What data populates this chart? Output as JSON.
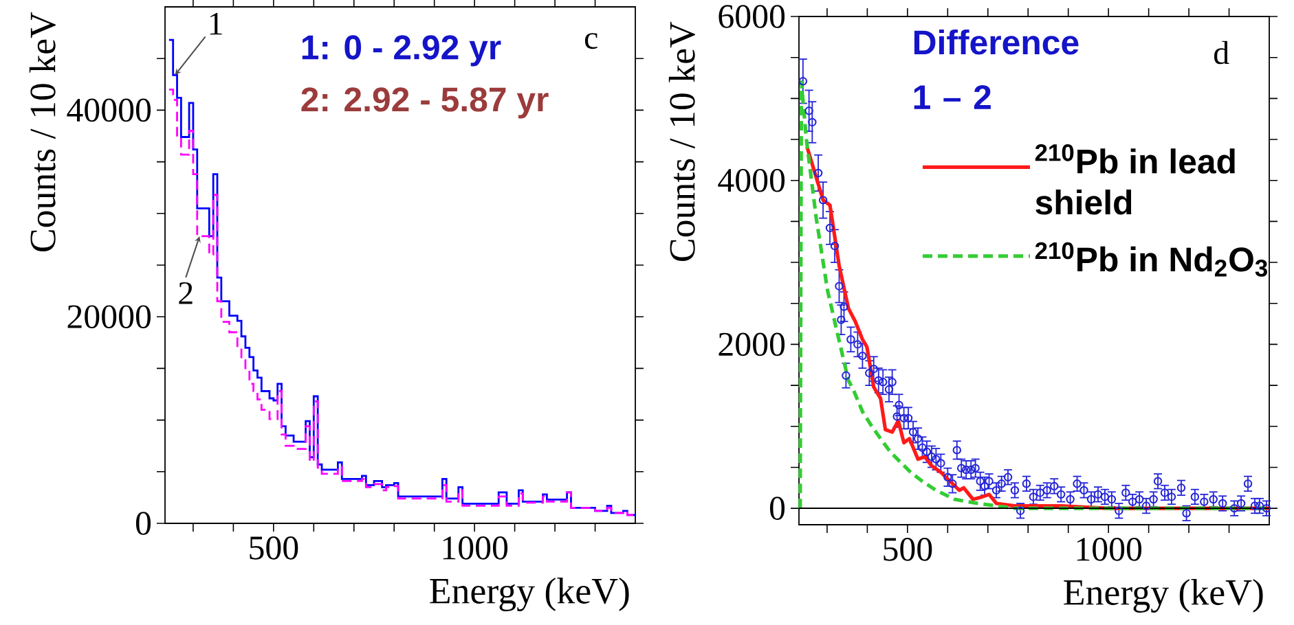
{
  "chart_data": [
    {
      "type": "histogram",
      "xlabel": "Energy (keV)",
      "ylabel": "Counts / 10 keV",
      "legend": false,
      "bins": [
        240,
        250,
        260,
        270,
        290,
        300,
        310,
        340,
        350,
        360,
        370,
        390,
        410,
        420,
        430,
        440,
        450,
        460,
        470,
        490,
        500,
        510,
        520,
        530,
        550,
        580,
        590,
        600,
        610,
        620,
        660,
        670,
        720,
        730,
        750,
        770,
        780,
        800,
        810,
        920,
        930,
        960,
        970,
        1060,
        1080,
        1110,
        1120,
        1170,
        1180,
        1230,
        1240,
        1300,
        1330,
        1340,
        1370,
        1380,
        1400
      ],
      "series": [
        {
          "color": "#0000ff",
          "line_style": "solid",
          "values": [
            46800,
            43400,
            41200,
            37400,
            40700,
            36200,
            30500,
            27800,
            33800,
            23800,
            21500,
            20100,
            19600,
            18100,
            17000,
            16100,
            14800,
            14100,
            12800,
            12100,
            11900,
            13500,
            9400,
            8500,
            7900,
            9900,
            6400,
            12300,
            5700,
            5200,
            5900,
            4300,
            4600,
            3700,
            4100,
            3500,
            3700,
            3900,
            2600,
            4300,
            2400,
            3500,
            1900,
            3000,
            1900,
            3200,
            2100,
            2800,
            2300,
            3000,
            1500,
            1200,
            1700,
            1000,
            1200,
            800
          ]
        },
        {
          "color": "#ff00ff",
          "line_style": "dashed",
          "values": [
            42000,
            41000,
            37400,
            35700,
            38000,
            33800,
            27800,
            26000,
            31800,
            21500,
            19500,
            18500,
            17000,
            15800,
            14800,
            13500,
            12800,
            12000,
            11000,
            10100,
            10100,
            12800,
            8600,
            7500,
            7200,
            9400,
            6000,
            11800,
            5400,
            4800,
            5500,
            4100,
            4300,
            3500,
            3800,
            3200,
            3500,
            3600,
            2400,
            3700,
            2100,
            3200,
            1700,
            2600,
            1700,
            2900,
            2000,
            2600,
            2100,
            3000,
            1500,
            1200,
            1500,
            1000,
            1200,
            800
          ]
        }
      ],
      "xlim": [
        230,
        1400
      ],
      "ylim": [
        0,
        50000
      ],
      "xticks": [
        {
          "value": 300,
          "label": null
        },
        {
          "value": 400,
          "label": null
        },
        500,
        {
          "value": 600,
          "label": null
        },
        {
          "value": 700,
          "label": null
        },
        {
          "value": 800,
          "label": null
        },
        {
          "value": 900,
          "label": null
        },
        1000,
        {
          "value": 1100,
          "label": null
        },
        {
          "value": 1200,
          "label": null
        },
        {
          "value": 1300,
          "label": null
        }
      ],
      "yticks": [
        0,
        {
          "value": 5000,
          "label": null
        },
        {
          "value": 10000,
          "label": null
        },
        {
          "value": 15000,
          "label": null
        },
        20000,
        {
          "value": 25000,
          "label": null
        },
        {
          "value": 30000,
          "label": null
        },
        {
          "value": 35000,
          "label": null
        },
        40000,
        {
          "value": 45000,
          "label": null
        }
      ],
      "annotations": [
        {
          "text": "1",
          "x": 255,
          "y": 43400
        },
        {
          "text": "2",
          "x": 316,
          "y": 27800
        },
        "1: 0 - 2.92 yr",
        "2: 2.92 - 5.87 yr",
        "c"
      ]
    },
    {
      "type": "scatter",
      "xlabel": "Energy (keV)",
      "ylabel": "Counts / 10 keV",
      "legend": "right",
      "series": [
        {
          "type": "scatter",
          "color": "#2424d8",
          "marker": "circle",
          "x": [
            240,
            255,
            263,
            278,
            290,
            307,
            319,
            330,
            335,
            342,
            347,
            359,
            376,
            388,
            405,
            416,
            428,
            439,
            454,
            462,
            474,
            479,
            491,
            502,
            514,
            526,
            537,
            548,
            560,
            571,
            583,
            600,
            612,
            623,
            634,
            646,
            658,
            669,
            681,
            692,
            703,
            721,
            734,
            750,
            767,
            781,
            796,
            813,
            830,
            847,
            865,
            882,
            905,
            922,
            939,
            957,
            974,
            991,
            1008,
            1026,
            1043,
            1060,
            1077,
            1094,
            1112,
            1123,
            1140,
            1157,
            1181,
            1194,
            1215,
            1238,
            1261,
            1284,
            1313,
            1330,
            1347,
            1364,
            1376,
            1393
          ],
          "values": [
            5210,
            4850,
            4710,
            4090,
            3760,
            3420,
            3200,
            2710,
            2300,
            2460,
            1620,
            2060,
            2000,
            1860,
            1650,
            1700,
            1560,
            1540,
            1450,
            1540,
            1120,
            1260,
            1100,
            1100,
            930,
            850,
            740,
            690,
            630,
            600,
            550,
            380,
            300,
            710,
            490,
            470,
            470,
            490,
            330,
            270,
            330,
            220,
            300,
            380,
            220,
            -30,
            300,
            140,
            190,
            220,
            270,
            170,
            110,
            300,
            220,
            110,
            170,
            140,
            110,
            -30,
            190,
            80,
            110,
            30,
            110,
            330,
            190,
            140,
            250,
            -60,
            140,
            80,
            110,
            60,
            0,
            60,
            300,
            30,
            30,
            0
          ],
          "errors": [
            270,
            250,
            250,
            220,
            220,
            200,
            200,
            200,
            180,
            180,
            150,
            150,
            150,
            150,
            150,
            150,
            150,
            150,
            150,
            150,
            130,
            130,
            130,
            130,
            130,
            130,
            130,
            130,
            130,
            130,
            110,
            110,
            110,
            110,
            110,
            110,
            110,
            110,
            110,
            110,
            90,
            90,
            90,
            90,
            90,
            90,
            90,
            90,
            90,
            90,
            90,
            90,
            90,
            90,
            90,
            90,
            90,
            90,
            90,
            90,
            90,
            90,
            90,
            90,
            90,
            90,
            90,
            90,
            90,
            90,
            90,
            90,
            90,
            90,
            90,
            90,
            90,
            90,
            90,
            90
          ]
        },
        {
          "type": "line",
          "name": "$^{210}$Pb in lead shield",
          "color": "#ff1a1a",
          "line_style": "solid",
          "x": [
            250,
            290,
            307,
            330,
            353,
            370,
            388,
            399,
            416,
            433,
            445,
            462,
            477,
            491,
            505,
            526,
            543,
            560,
            583,
            606,
            629,
            640,
            663,
            686,
            703,
            721,
            767,
            882,
            997,
            1400
          ],
          "values": [
            4410,
            3760,
            3700,
            2960,
            2440,
            2280,
            2060,
            1970,
            1480,
            1340,
            960,
            930,
            1070,
            800,
            850,
            600,
            630,
            520,
            440,
            330,
            220,
            250,
            110,
            140,
            170,
            60,
            30,
            30,
            0,
            0
          ]
        },
        {
          "type": "line",
          "name": "$^{210}$Pb in Nd$_{2}$O$_{3}$",
          "color": "#33cc33",
          "line_style": "dashed",
          "x": [
            233,
            236,
            248,
            273,
            301,
            324,
            353,
            365,
            388,
            410,
            433,
            457,
            479,
            508,
            537,
            571,
            617,
            675,
            767,
            1400
          ],
          "values": [
            0,
            5200,
            4520,
            3540,
            2660,
            2170,
            1560,
            1450,
            1180,
            1010,
            850,
            690,
            580,
            440,
            330,
            220,
            110,
            60,
            0,
            0
          ]
        }
      ],
      "ref_lines": [
        {
          "axis": "y",
          "value": 0,
          "color": "#000000"
        }
      ],
      "xlim": [
        230,
        1400
      ],
      "ylim": [
        -200,
        6000
      ],
      "xticks": [
        {
          "value": 300,
          "label": null
        },
        {
          "value": 400,
          "label": null
        },
        500,
        {
          "value": 600,
          "label": null
        },
        {
          "value": 700,
          "label": null
        },
        {
          "value": 800,
          "label": null
        },
        {
          "value": 900,
          "label": null
        },
        1000,
        {
          "value": 1100,
          "label": null
        },
        {
          "value": 1200,
          "label": null
        },
        {
          "value": 1300,
          "label": null
        }
      ],
      "yticks": [
        0,
        {
          "value": 500,
          "label": null
        },
        {
          "value": 1000,
          "label": null
        },
        {
          "value": 1500,
          "label": null
        },
        2000,
        {
          "value": 2500,
          "label": null
        },
        {
          "value": 3000,
          "label": null
        },
        {
          "value": 3500,
          "label": null
        },
        4000,
        {
          "value": 4500,
          "label": null
        },
        {
          "value": 5000,
          "label": null
        },
        {
          "value": 5500,
          "label": null
        },
        6000
      ],
      "annotations": [
        "Difference 1 – 2",
        "d"
      ]
    }
  ]
}
